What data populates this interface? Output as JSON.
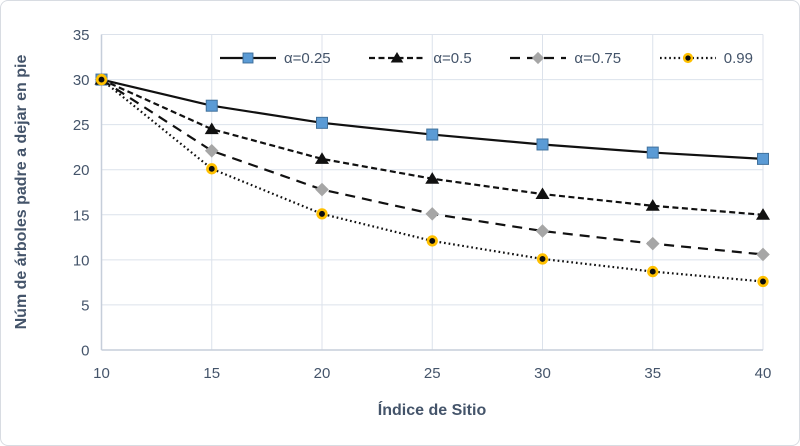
{
  "chart_data": {
    "type": "line",
    "title": "",
    "xlabel": "Índice de Sitio",
    "ylabel": "Núm de árboles padre a dejar en pie",
    "x": [
      10,
      15,
      20,
      25,
      30,
      35,
      40
    ],
    "xticks": [
      10,
      15,
      20,
      25,
      30,
      35,
      40
    ],
    "yticks": [
      0,
      5,
      10,
      15,
      20,
      25,
      30,
      35
    ],
    "xlim": [
      10,
      40
    ],
    "ylim": [
      0,
      35
    ],
    "grid": true,
    "legend_position": "top-inside-horizontal",
    "series": [
      {
        "name": "α=0.25",
        "values": [
          30,
          27.1,
          25.2,
          23.9,
          22.8,
          21.9,
          21.2
        ],
        "line_style": "solid",
        "marker": "square",
        "marker_color": "#5B9BD5",
        "marker_edge": "#41719C",
        "line_color": "#111111"
      },
      {
        "name": "α=0.5",
        "values": [
          30,
          24.5,
          21.2,
          19,
          17.3,
          16,
          15
        ],
        "line_style": "dash",
        "marker": "triangle",
        "marker_color": "#111111",
        "line_color": "#111111"
      },
      {
        "name": "α=0.75",
        "values": [
          30,
          22.1,
          17.8,
          15.1,
          13.2,
          11.8,
          10.6
        ],
        "line_style": "long-dash",
        "marker": "diamond",
        "marker_color": "#A6A6A6",
        "line_color": "#111111"
      },
      {
        "name": "0.99",
        "values": [
          30,
          20.1,
          15.1,
          12.1,
          10.1,
          8.7,
          7.6
        ],
        "line_style": "dot",
        "marker": "circle-ring",
        "marker_color": "#0D0D0D",
        "marker_ring": "#FFC000",
        "line_color": "#111111"
      }
    ],
    "colors": {
      "text": "#44546A",
      "gridline": "#DCE2EB",
      "axis_line": "#C6CEDA",
      "background": "#FFFFFF",
      "frame_border": "#D8DCE2"
    }
  }
}
